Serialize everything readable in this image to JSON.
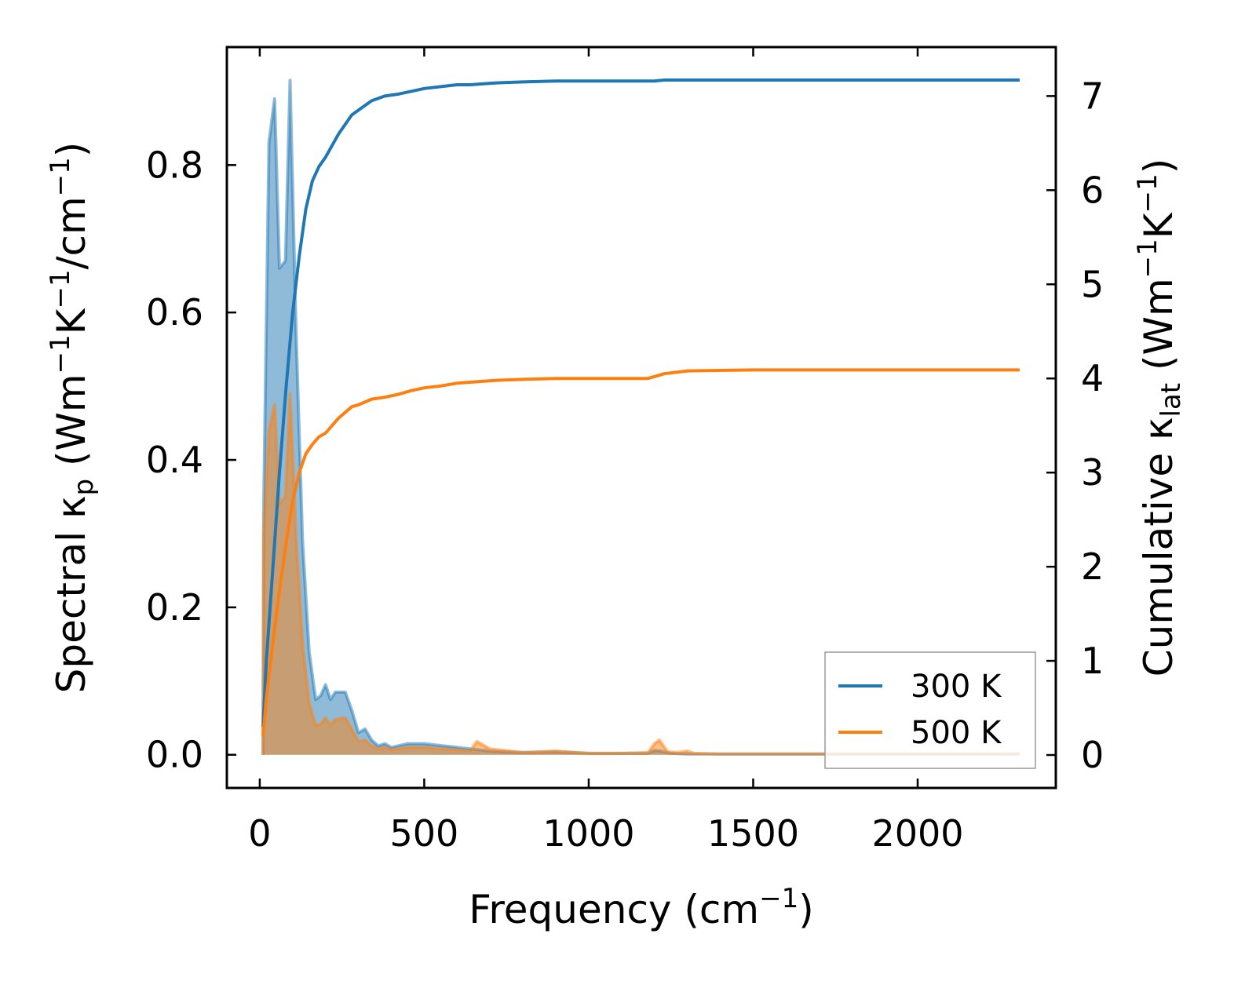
{
  "chart_data": {
    "type": "line",
    "x_axis": {
      "label": "Frequency (cm",
      "label_sup": "−1",
      "label_end": ")",
      "range": [
        -100,
        2420
      ],
      "ticks": [
        0,
        500,
        1000,
        1500,
        2000
      ],
      "tick_labels": [
        "0",
        "500",
        "1000",
        "1500",
        "2000"
      ]
    },
    "y_left": {
      "label_parts": [
        {
          "t": "Spectral κ",
          "style": "normal"
        },
        {
          "t": "p",
          "style": "sub"
        },
        {
          "t": " (Wm",
          "style": "normal"
        },
        {
          "t": "−1",
          "style": "sup"
        },
        {
          "t": "K",
          "style": "normal"
        },
        {
          "t": "−1",
          "style": "sup"
        },
        {
          "t": "/cm",
          "style": "normal"
        },
        {
          "t": "−1",
          "style": "sup"
        },
        {
          "t": ")",
          "style": "normal"
        }
      ],
      "range": [
        -0.045,
        0.96
      ],
      "ticks": [
        0.0,
        0.2,
        0.4,
        0.6,
        0.8
      ],
      "tick_labels": [
        "0.0",
        "0.2",
        "0.4",
        "0.6",
        "0.8"
      ]
    },
    "y_right": {
      "label_parts": [
        {
          "t": "Cumulative κ",
          "style": "normal"
        },
        {
          "t": "lat",
          "style": "sub"
        },
        {
          "t": " (Wm",
          "style": "normal"
        },
        {
          "t": "−1",
          "style": "sup"
        },
        {
          "t": "K",
          "style": "normal"
        },
        {
          "t": "−1",
          "style": "sup"
        },
        {
          "t": ")",
          "style": "normal"
        }
      ],
      "range": [
        -0.35,
        7.52
      ],
      "ticks": [
        0,
        1,
        2,
        3,
        4,
        5,
        6,
        7
      ],
      "tick_labels": [
        "0",
        "1",
        "2",
        "3",
        "4",
        "5",
        "6",
        "7"
      ]
    },
    "legend": {
      "position": "lower-right",
      "entries": [
        "300 K",
        "500 K"
      ]
    },
    "series": [
      {
        "name": "300 K",
        "color": "#1f77b4",
        "spectral": {
          "x": [
            10,
            12,
            28,
            45,
            60,
            78,
            92,
            110,
            130,
            150,
            170,
            185,
            200,
            215,
            230,
            260,
            280,
            300,
            320,
            340,
            360,
            380,
            400,
            450,
            500,
            560,
            600,
            640,
            700,
            800,
            900,
            1000,
            1100,
            1180,
            1200,
            1220,
            1250,
            1300,
            1400,
            1600,
            1800,
            2000,
            2200,
            2310
          ],
          "y": [
            0.0,
            0.335,
            0.83,
            0.89,
            0.66,
            0.67,
            0.915,
            0.58,
            0.29,
            0.14,
            0.075,
            0.08,
            0.095,
            0.075,
            0.085,
            0.085,
            0.06,
            0.03,
            0.035,
            0.02,
            0.012,
            0.015,
            0.01,
            0.015,
            0.015,
            0.012,
            0.01,
            0.008,
            0.005,
            0.003,
            0.004,
            0.002,
            0.002,
            0.002,
            0.006,
            0.005,
            0.002,
            0.001,
            0.001,
            0.001,
            0.001,
            0.001,
            0.001,
            0.001
          ]
        },
        "cumulative": {
          "x": [
            10,
            20,
            40,
            60,
            80,
            100,
            120,
            140,
            160,
            180,
            200,
            240,
            280,
            300,
            340,
            380,
            420,
            460,
            500,
            550,
            600,
            640,
            680,
            720,
            800,
            900,
            1000,
            1100,
            1200,
            1230,
            1300,
            1500,
            1800,
            2100,
            2310
          ],
          "y": [
            0.3,
            1.0,
            2.0,
            3.0,
            3.9,
            4.7,
            5.3,
            5.8,
            6.1,
            6.25,
            6.35,
            6.6,
            6.8,
            6.85,
            6.95,
            7.0,
            7.02,
            7.05,
            7.08,
            7.1,
            7.12,
            7.12,
            7.13,
            7.14,
            7.15,
            7.16,
            7.16,
            7.16,
            7.16,
            7.17,
            7.17,
            7.17,
            7.17,
            7.17,
            7.17
          ]
        }
      },
      {
        "name": "500 K",
        "color": "#ff7f0e",
        "spectral": {
          "x": [
            10,
            12,
            28,
            45,
            60,
            78,
            92,
            110,
            130,
            150,
            170,
            185,
            200,
            215,
            230,
            260,
            280,
            300,
            320,
            340,
            360,
            380,
            400,
            450,
            500,
            560,
            600,
            640,
            660,
            700,
            800,
            900,
            1000,
            1100,
            1180,
            1200,
            1215,
            1240,
            1270,
            1300,
            1320,
            1400,
            1600,
            1800,
            2000,
            2200,
            2310
          ],
          "y": [
            0.0,
            0.3,
            0.44,
            0.475,
            0.34,
            0.35,
            0.49,
            0.3,
            0.15,
            0.07,
            0.04,
            0.042,
            0.05,
            0.04,
            0.048,
            0.05,
            0.035,
            0.018,
            0.02,
            0.012,
            0.008,
            0.01,
            0.007,
            0.01,
            0.01,
            0.008,
            0.007,
            0.005,
            0.018,
            0.008,
            0.003,
            0.005,
            0.002,
            0.002,
            0.003,
            0.015,
            0.02,
            0.004,
            0.003,
            0.005,
            0.002,
            0.001,
            0.001,
            0.001,
            0.001,
            0.001,
            0.001
          ]
        },
        "cumulative": {
          "x": [
            10,
            20,
            40,
            60,
            80,
            100,
            120,
            140,
            160,
            180,
            200,
            240,
            280,
            300,
            340,
            380,
            420,
            460,
            500,
            550,
            600,
            640,
            680,
            720,
            800,
            900,
            1000,
            1100,
            1180,
            1200,
            1230,
            1300,
            1500,
            1800,
            2100,
            2310
          ],
          "y": [
            0.2,
            0.6,
            1.2,
            1.75,
            2.25,
            2.7,
            3.0,
            3.2,
            3.3,
            3.38,
            3.42,
            3.58,
            3.7,
            3.72,
            3.78,
            3.8,
            3.83,
            3.87,
            3.9,
            3.92,
            3.95,
            3.96,
            3.97,
            3.98,
            3.99,
            4.0,
            4.0,
            4.0,
            4.0,
            4.02,
            4.05,
            4.08,
            4.09,
            4.09,
            4.09,
            4.09
          ]
        }
      }
    ]
  }
}
